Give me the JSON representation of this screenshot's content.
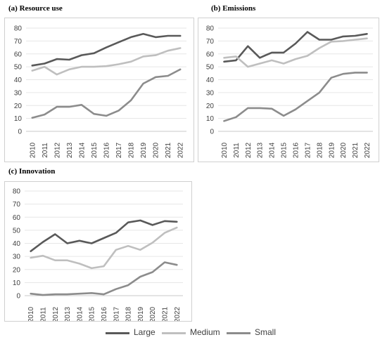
{
  "panels": [
    {
      "title": "(a)   Resource use"
    },
    {
      "title": "(b)   Emissions"
    },
    {
      "title": "(c)   Innovation"
    }
  ],
  "legend": [
    {
      "label": "Large",
      "color": "#595959"
    },
    {
      "label": "Medium",
      "color": "#bfbfbf"
    },
    {
      "label": "Small",
      "color": "#8c8c8c"
    }
  ],
  "chart_data": [
    {
      "type": "line",
      "title": "(a)   Resource use",
      "x": [
        "2010",
        "2011",
        "2012",
        "2013",
        "2014",
        "2015",
        "2016",
        "2017",
        "2018",
        "2019",
        "2020",
        "2021",
        "2022"
      ],
      "ylim": [
        0,
        80
      ],
      "yticks": [
        0,
        10,
        20,
        30,
        40,
        50,
        60,
        70,
        80
      ],
      "grid": "horizontal",
      "series": [
        {
          "name": "Large",
          "color": "#595959",
          "values": [
            51,
            52.5,
            56,
            55.5,
            59,
            60.5,
            65,
            69,
            73,
            75.5,
            73,
            74,
            74
          ]
        },
        {
          "name": "Medium",
          "color": "#bfbfbf",
          "values": [
            47,
            50,
            44,
            48,
            50,
            50,
            50.5,
            52,
            54,
            58,
            59,
            62.5,
            64.5
          ]
        },
        {
          "name": "Small",
          "color": "#8c8c8c",
          "values": [
            10.5,
            13,
            19,
            19,
            20.5,
            13.5,
            12,
            16,
            24,
            37,
            42,
            43,
            48
          ]
        }
      ]
    },
    {
      "type": "line",
      "title": "(b)   Emissions",
      "x": [
        "2010",
        "2011",
        "2012",
        "2013",
        "2014",
        "2015",
        "2016",
        "2017",
        "2018",
        "2019",
        "2020",
        "2021",
        "2022"
      ],
      "ylim": [
        0,
        80
      ],
      "yticks": [
        0,
        10,
        20,
        30,
        40,
        50,
        60,
        70,
        80
      ],
      "grid": "horizontal",
      "series": [
        {
          "name": "Large",
          "color": "#595959",
          "values": [
            54,
            55,
            66,
            57,
            61,
            61,
            68,
            77,
            71,
            71,
            73.5,
            74,
            75.5
          ]
        },
        {
          "name": "Medium",
          "color": "#bfbfbf",
          "values": [
            57,
            58,
            50,
            52.5,
            55,
            52.5,
            56,
            58.5,
            64.5,
            69.5,
            70,
            71,
            72
          ]
        },
        {
          "name": "Small",
          "color": "#8c8c8c",
          "values": [
            8,
            11,
            18,
            18,
            17.5,
            12,
            17,
            23.5,
            30,
            41.5,
            44.5,
            45.5,
            45.5
          ]
        }
      ]
    },
    {
      "type": "line",
      "title": "(c)   Innovation",
      "x": [
        "2010",
        "2011",
        "2012",
        "2013",
        "2014",
        "2015",
        "2016",
        "2017",
        "2018",
        "2019",
        "2020",
        "2021",
        "2022"
      ],
      "ylim": [
        0,
        80
      ],
      "yticks": [
        0,
        10,
        20,
        30,
        40,
        50,
        60,
        70,
        80
      ],
      "grid": "horizontal",
      "series": [
        {
          "name": "Large",
          "color": "#595959",
          "values": [
            34,
            41,
            47,
            40,
            42,
            40,
            44,
            48,
            56,
            57.5,
            54,
            57,
            56.5
          ]
        },
        {
          "name": "Medium",
          "color": "#bfbfbf",
          "values": [
            29,
            30.5,
            27,
            27,
            24.5,
            21,
            22.5,
            35,
            38,
            35,
            40.5,
            48,
            52
          ]
        },
        {
          "name": "Small",
          "color": "#8c8c8c",
          "values": [
            1.5,
            0.5,
            1,
            1,
            1.5,
            2,
            1,
            5,
            8,
            14.5,
            18,
            25.5,
            23.5
          ]
        }
      ]
    }
  ]
}
